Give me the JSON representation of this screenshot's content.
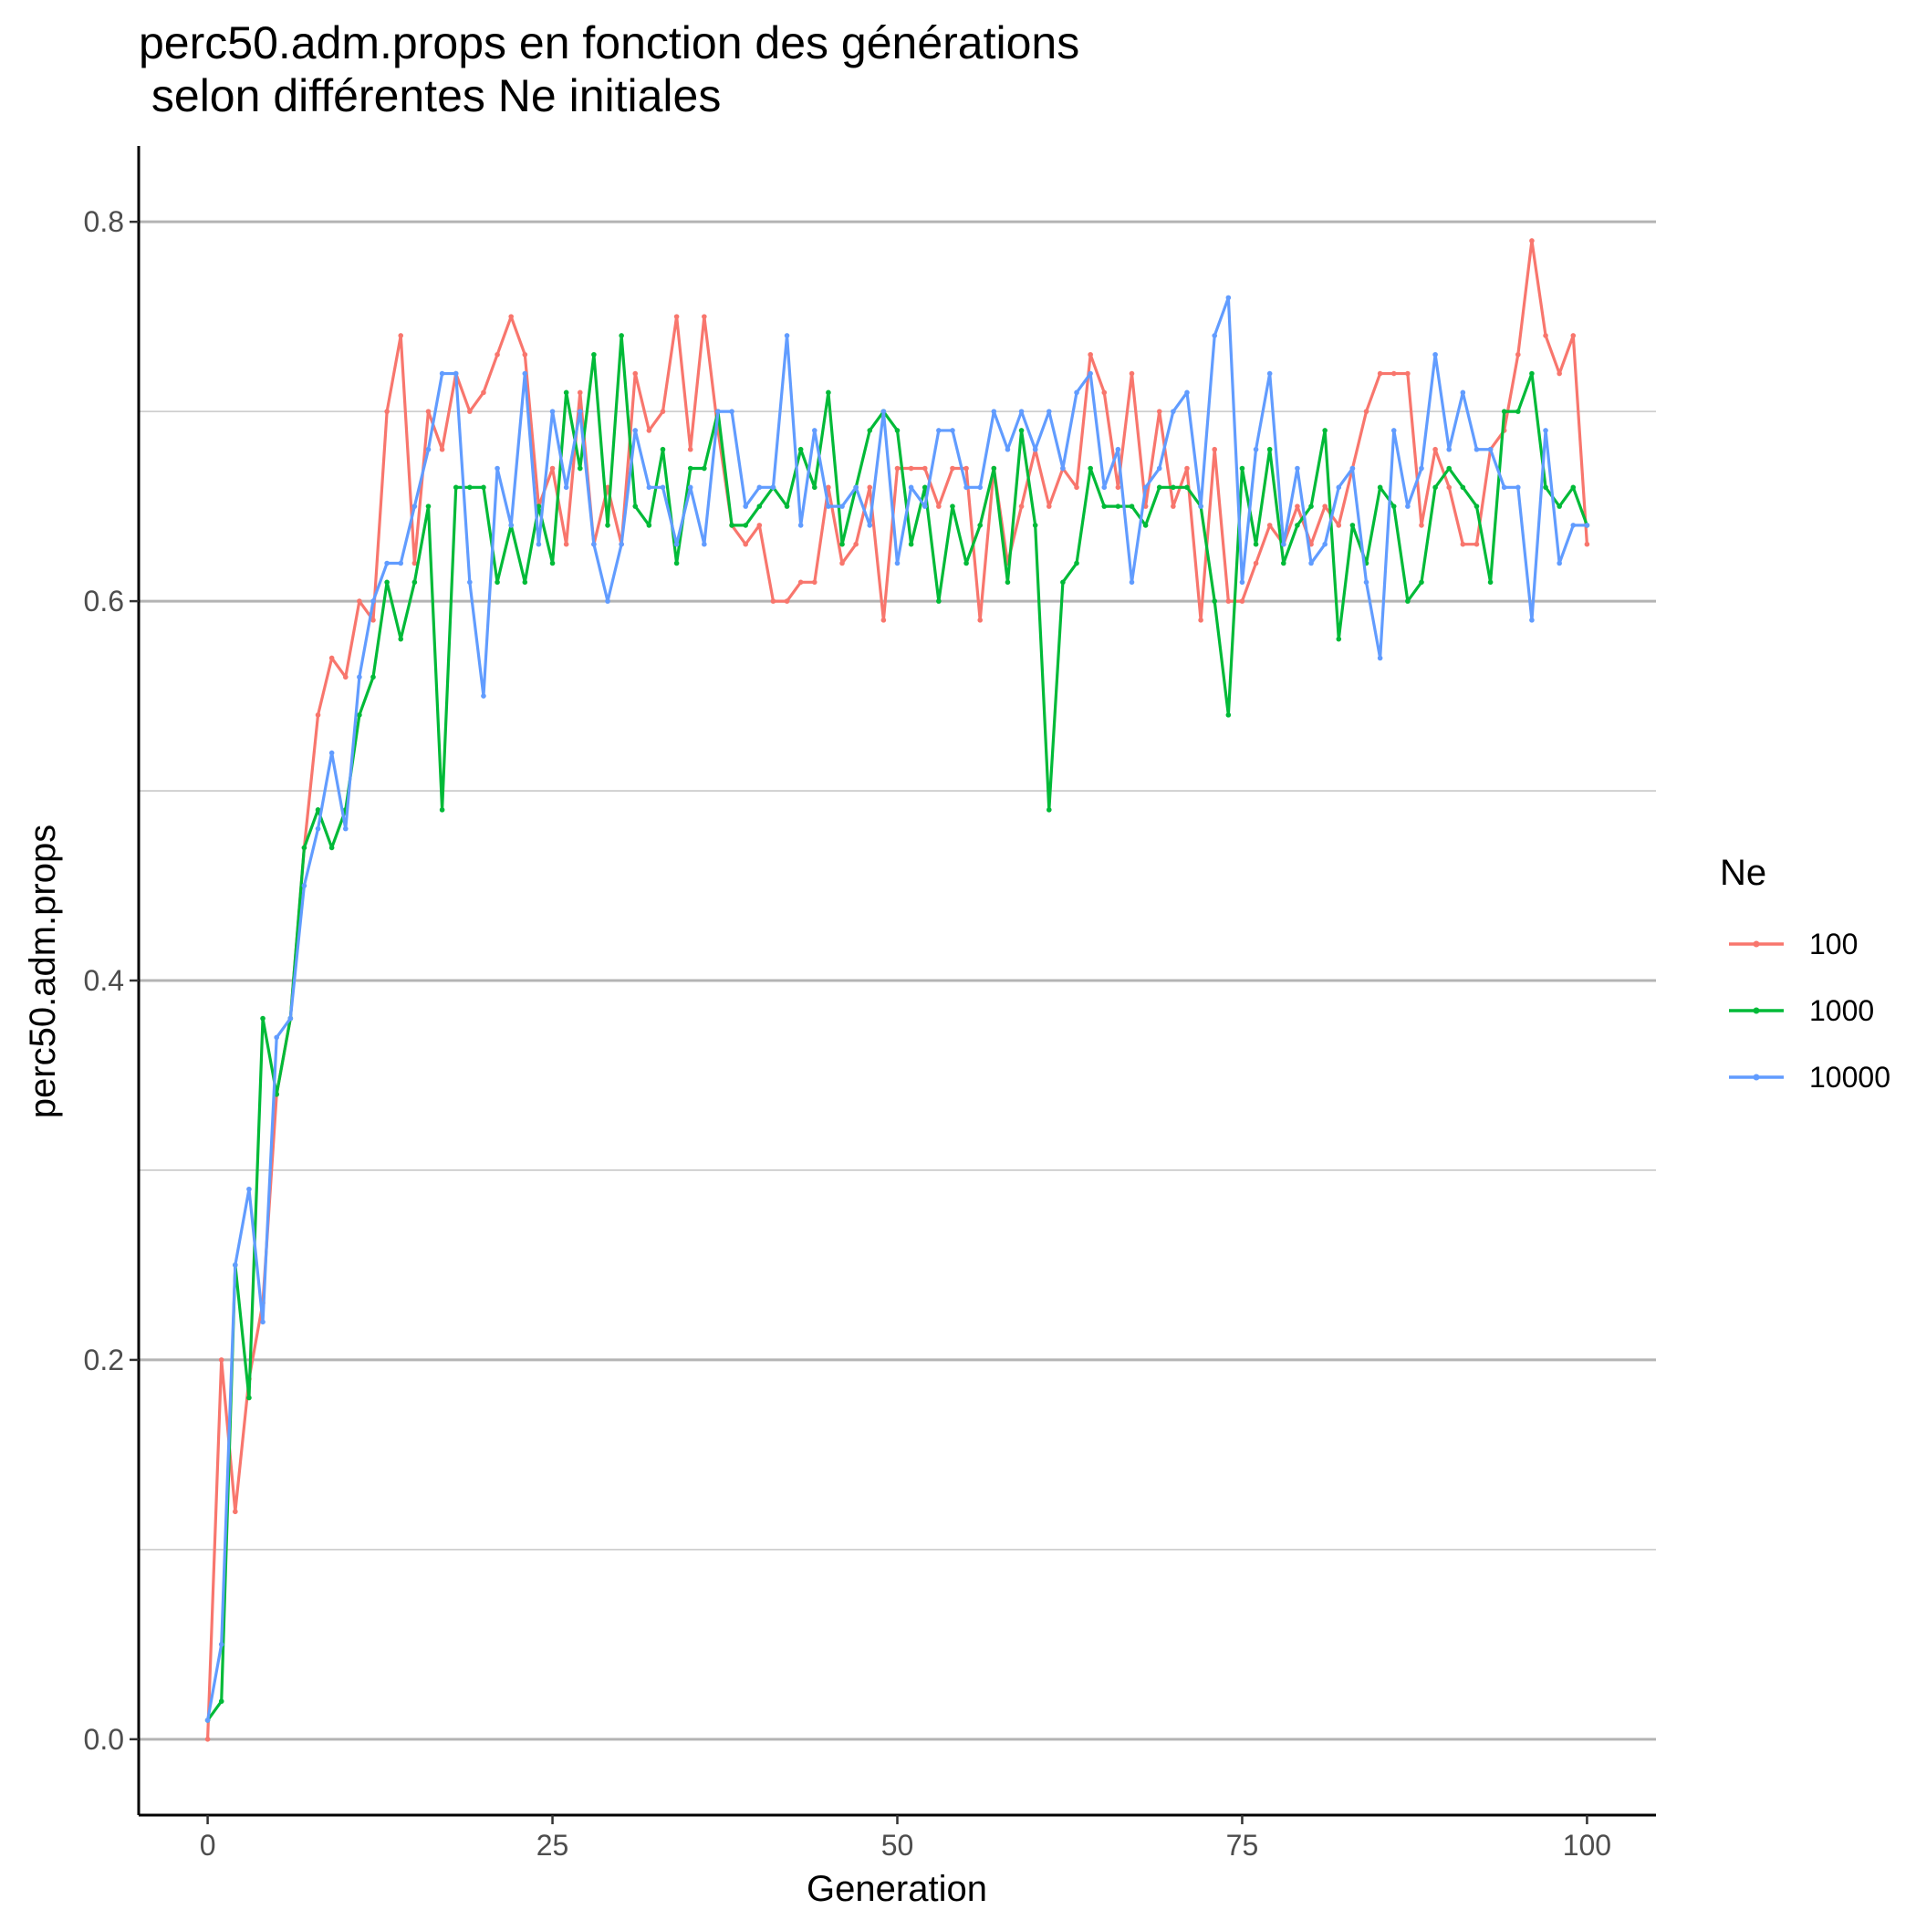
{
  "chart_data": {
    "type": "line",
    "title": "perc50.adm.props en fonction des générations",
    "subtitle": " selon différentes Ne initiales",
    "xlabel": "Generation",
    "ylabel": "perc50.adm.props",
    "xlim": [
      -5,
      105
    ],
    "ylim": [
      -0.04,
      0.84
    ],
    "x_ticks": [
      0,
      25,
      50,
      75,
      100
    ],
    "x_tick_labels": [
      "0",
      "25",
      "50",
      "75",
      "100"
    ],
    "y_ticks": [
      0.0,
      0.2,
      0.4,
      0.6,
      0.8
    ],
    "y_tick_labels": [
      "0.0",
      "0.2",
      "0.4",
      "0.6",
      "0.8"
    ],
    "y_minor_ticks": [
      0.1,
      0.3,
      0.5,
      0.7
    ],
    "grid": "horizontal",
    "legend_title": "Ne",
    "legend_position": "right",
    "series": [
      {
        "name": "100",
        "color": "#F8766D",
        "values": [
          0.0,
          0.2,
          0.12,
          0.19,
          0.23,
          0.34,
          0.38,
          0.47,
          0.54,
          0.57,
          0.56,
          0.6,
          0.59,
          0.7,
          0.74,
          0.62,
          0.7,
          0.68,
          0.72,
          0.7,
          0.71,
          0.73,
          0.75,
          0.73,
          0.65,
          0.67,
          0.63,
          0.71,
          0.63,
          0.66,
          0.63,
          0.72,
          0.69,
          0.7,
          0.75,
          0.68,
          0.75,
          0.69,
          0.64,
          0.63,
          0.64,
          0.6,
          0.6,
          0.61,
          0.61,
          0.66,
          0.62,
          0.63,
          0.66,
          0.59,
          0.67,
          0.67,
          0.67,
          0.65,
          0.67,
          0.67,
          0.59,
          0.67,
          0.62,
          0.65,
          0.68,
          0.65,
          0.67,
          0.66,
          0.73,
          0.71,
          0.66,
          0.72,
          0.65,
          0.7,
          0.65,
          0.67,
          0.59,
          0.68,
          0.6,
          0.6,
          0.62,
          0.64,
          0.63,
          0.65,
          0.63,
          0.65,
          0.64,
          0.67,
          0.7,
          0.72,
          0.72,
          0.72,
          0.64,
          0.68,
          0.66,
          0.63,
          0.63,
          0.68,
          0.69,
          0.73,
          0.79,
          0.74,
          0.72,
          0.74,
          0.63
        ]
      },
      {
        "name": "1000",
        "color": "#00BA38",
        "values": [
          0.01,
          0.02,
          0.25,
          0.18,
          0.38,
          0.34,
          0.38,
          0.47,
          0.49,
          0.47,
          0.49,
          0.54,
          0.56,
          0.61,
          0.58,
          0.61,
          0.65,
          0.49,
          0.66,
          0.66,
          0.66,
          0.61,
          0.64,
          0.61,
          0.65,
          0.62,
          0.71,
          0.67,
          0.73,
          0.64,
          0.74,
          0.65,
          0.64,
          0.68,
          0.62,
          0.67,
          0.67,
          0.7,
          0.64,
          0.64,
          0.65,
          0.66,
          0.65,
          0.68,
          0.66,
          0.71,
          0.63,
          0.66,
          0.69,
          0.7,
          0.69,
          0.63,
          0.66,
          0.6,
          0.65,
          0.62,
          0.64,
          0.67,
          0.61,
          0.69,
          0.64,
          0.49,
          0.61,
          0.62,
          0.67,
          0.65,
          0.65,
          0.65,
          0.64,
          0.66,
          0.66,
          0.66,
          0.65,
          0.6,
          0.54,
          0.67,
          0.63,
          0.68,
          0.62,
          0.64,
          0.65,
          0.69,
          0.58,
          0.64,
          0.62,
          0.66,
          0.65,
          0.6,
          0.61,
          0.66,
          0.67,
          0.66,
          0.65,
          0.61,
          0.7,
          0.7,
          0.72,
          0.66,
          0.65,
          0.66,
          0.64
        ]
      },
      {
        "name": "10000",
        "color": "#619CFF",
        "values": [
          0.01,
          0.05,
          0.25,
          0.29,
          0.22,
          0.37,
          0.38,
          0.45,
          0.48,
          0.52,
          0.48,
          0.56,
          0.6,
          0.62,
          0.62,
          0.65,
          0.68,
          0.72,
          0.72,
          0.61,
          0.55,
          0.67,
          0.64,
          0.72,
          0.63,
          0.7,
          0.66,
          0.7,
          0.63,
          0.6,
          0.63,
          0.69,
          0.66,
          0.66,
          0.63,
          0.66,
          0.63,
          0.7,
          0.7,
          0.65,
          0.66,
          0.66,
          0.74,
          0.64,
          0.69,
          0.65,
          0.65,
          0.66,
          0.64,
          0.7,
          0.62,
          0.66,
          0.65,
          0.69,
          0.69,
          0.66,
          0.66,
          0.7,
          0.68,
          0.7,
          0.68,
          0.7,
          0.67,
          0.71,
          0.72,
          0.66,
          0.68,
          0.61,
          0.66,
          0.67,
          0.7,
          0.71,
          0.65,
          0.74,
          0.76,
          0.61,
          0.68,
          0.72,
          0.63,
          0.67,
          0.62,
          0.63,
          0.66,
          0.67,
          0.61,
          0.57,
          0.69,
          0.65,
          0.67,
          0.73,
          0.68,
          0.71,
          0.68,
          0.68,
          0.66,
          0.66,
          0.59,
          0.69,
          0.62,
          0.64,
          0.64
        ]
      }
    ]
  }
}
